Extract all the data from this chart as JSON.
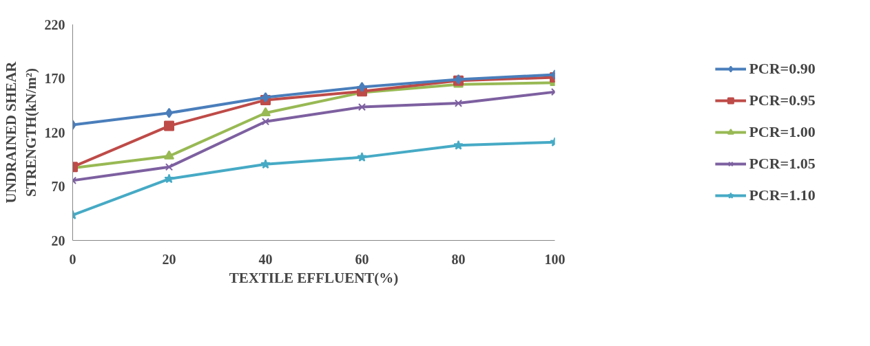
{
  "chart_data": {
    "type": "line",
    "xlabel": "TEXTILE EFFLUENT(%)",
    "ylabel": "UNDRAINED SHEAR\nSTRENGTH(kN/m²)",
    "x": [
      0,
      20,
      40,
      60,
      80,
      100
    ],
    "series": [
      {
        "name": "PCR=0.90",
        "color": "#4a7ebb",
        "marker": "diamond",
        "values": [
          127,
          138,
          152.5,
          162,
          169,
          173.5
        ]
      },
      {
        "name": "PCR=0.95",
        "color": "#be4b48",
        "marker": "square",
        "values": [
          88,
          126,
          150,
          158,
          168,
          171
        ]
      },
      {
        "name": "PCR=1.00",
        "color": "#98b954",
        "marker": "triangle",
        "values": [
          87,
          98,
          138,
          157,
          164.5,
          166
        ]
      },
      {
        "name": "PCR=1.05",
        "color": "#7d60a0",
        "marker": "cross",
        "values": [
          75.5,
          88,
          130,
          143.5,
          147,
          157.5
        ]
      },
      {
        "name": "PCR=1.10",
        "color": "#46aac5",
        "marker": "star",
        "values": [
          43.5,
          77,
          90.5,
          97,
          108,
          111
        ]
      }
    ],
    "xlim": [
      0,
      100
    ],
    "ylim": [
      20,
      220
    ],
    "xticks": [
      0,
      20,
      40,
      60,
      80,
      100
    ],
    "yticks": [
      20,
      70,
      120,
      170,
      220
    ],
    "grid": false,
    "legend": "right",
    "line_style": "solid"
  }
}
